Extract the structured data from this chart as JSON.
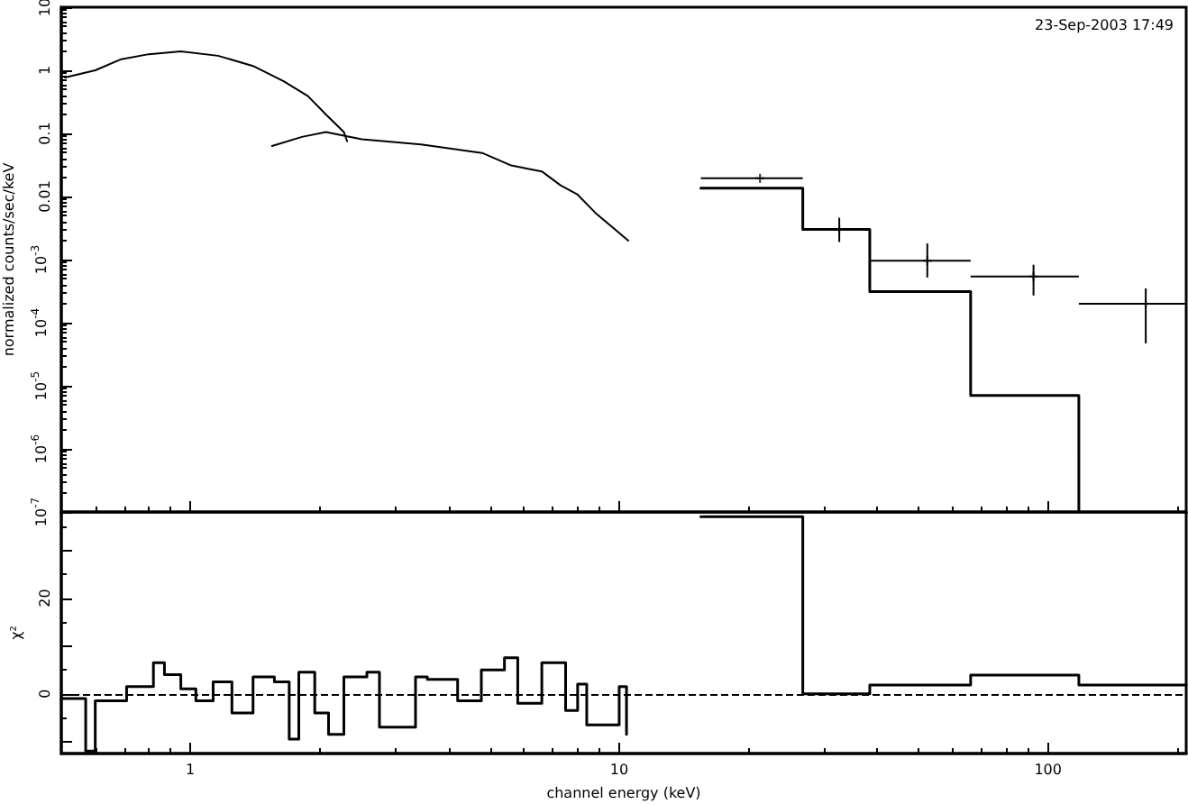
{
  "chart_data": [
    {
      "type": "line",
      "ylabel": "normalized counts/sec/keV",
      "annotations": [
        "23-Sep-2003 17:49"
      ],
      "log": "xy",
      "marker": "none",
      "tick_labels": "y",
      "xlim": [
        0.5,
        210
      ],
      "xticks": [
        1,
        10,
        100
      ],
      "ylim": [
        1e-07,
        10
      ],
      "yticks": [
        {
          "value": 1e-07,
          "label": "10$^{-7}$"
        },
        {
          "value": 1e-06,
          "label": "10$^{-6}$"
        },
        {
          "value": 1e-05,
          "label": "10$^{-5}$"
        },
        {
          "value": 0.0001,
          "label": "10$^{-4}$"
        },
        {
          "value": 0.001,
          "label": "10$^{-3}$"
        },
        0.01,
        0.1,
        1,
        10
      ],
      "series": [
        {
          "color": "#000000",
          "x": [
            0.51,
            0.6,
            0.69,
            0.8,
            0.95,
            1.16,
            1.4,
            1.65,
            1.88,
            2.07,
            2.28,
            2.32
          ],
          "values": [
            0.77,
            1.0,
            1.5,
            1.8,
            2.0,
            1.7,
            1.17,
            0.67,
            0.39,
            0.2,
            0.105,
            0.075
          ]
        },
        {
          "color": "#000000",
          "x": [
            1.55,
            1.82,
            2.07,
            2.51,
            3.45,
            4.79,
            5.6,
            6.2,
            6.6,
            7.3,
            8.0,
            8.8,
            10.5
          ],
          "values": [
            0.063,
            0.088,
            0.105,
            0.081,
            0.067,
            0.049,
            0.031,
            0.027,
            0.025,
            0.015,
            0.0107,
            0.0055,
            0.002
          ]
        },
        {
          "type": "scatter",
          "marker": "cross",
          "color": "#000000",
          "x": [
            21.3,
            32.6,
            52.3,
            92.5,
            169
          ],
          "values": [
            0.0194,
            0.003,
            0.00096,
            0.00054,
            0.0002
          ],
          "xerrors": [
            [
              15.5,
              26.8
            ],
            [
              26.8,
              38.4
            ],
            [
              38.4,
              66
            ],
            [
              66,
              118
            ],
            [
              118,
              210
            ]
          ],
          "errors": [
            null,
            [
              0.0019,
              0.0046
            ],
            [
              0.00052,
              0.0018
            ],
            [
              0.00027,
              0.00083
            ],
            [
              4.7e-05,
              0.00035
            ]
          ]
        },
        {
          "type": "step",
          "color": "#000000",
          "x": [
            15.5,
            26.8,
            38.4,
            66,
            118
          ],
          "values": [
            0.0136,
            0.003,
            0.00031,
            7e-06,
            1e-07
          ]
        }
      ]
    },
    {
      "type": "step",
      "xlabel": "channel energy (keV)",
      "ylabel": "χ²",
      "log": "x",
      "marker": "none",
      "xlim": [
        0.5,
        210
      ],
      "xticks": [
        1,
        10,
        100
      ],
      "ylim": [
        -12.5,
        38
      ],
      "yticks": [
        {
          "value": -10,
          "label": null
        },
        0,
        {
          "value": 10,
          "label": null
        },
        20,
        {
          "value": 30,
          "label": null
        }
      ],
      "ref_lines": [
        {
          "axis": "y",
          "value": 0,
          "color": "#000000",
          "line_style": "dashed"
        }
      ],
      "series": [
        {
          "color": "#000000",
          "x": [
            0.5,
            0.57,
            0.6,
            0.71,
            0.82,
            0.87,
            0.95,
            1.03,
            1.13,
            1.25,
            1.4,
            1.57,
            1.7,
            1.79,
            1.95,
            2.1,
            2.28,
            2.58,
            2.76,
            3.35,
            3.57,
            4.2,
            4.77,
            5.4,
            5.8,
            6.6,
            7.5,
            8.0,
            8.4,
            10,
            10.4
          ],
          "values": [
            -1,
            -12,
            -1.5,
            1.5,
            6.5,
            4,
            1,
            -1.5,
            2.5,
            -4,
            3.5,
            2.5,
            -9.5,
            4.5,
            -4,
            -8.5,
            3.5,
            4.5,
            -7,
            3.5,
            3,
            -1.5,
            5,
            7.5,
            -2,
            6.5,
            -3.5,
            2,
            -6.5,
            1.5,
            -8.5
          ]
        },
        {
          "color": "#000000",
          "x": [
            15.5,
            26.8,
            38.4,
            66,
            118,
            210
          ],
          "values": [
            37,
            0,
            1.8,
            3.9,
            1.8,
            1.8
          ]
        }
      ]
    }
  ]
}
